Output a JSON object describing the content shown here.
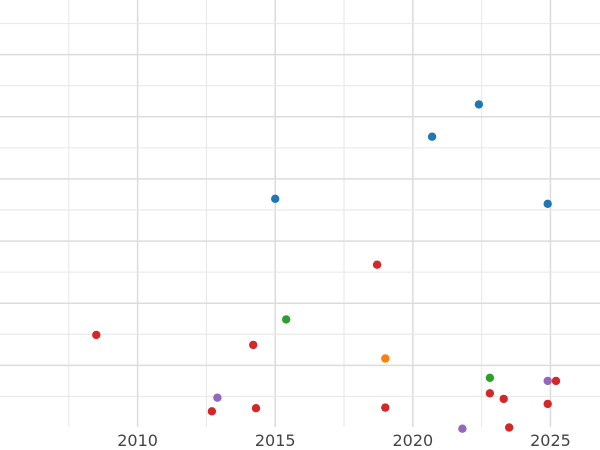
{
  "chart_data": {
    "type": "scatter",
    "title": "",
    "xlabel": "",
    "ylabel": "",
    "xlim": [
      2005.0,
      2026.8
    ],
    "ylim": [
      0,
      7
    ],
    "x_ticks": [
      {
        "value": 2010,
        "label": "2010"
      },
      {
        "value": 2015,
        "label": "2015"
      },
      {
        "value": 2020,
        "label": "2020"
      },
      {
        "value": 2025,
        "label": "2025"
      }
    ],
    "x_gridlines": [
      2010,
      2015,
      2020,
      2025
    ],
    "y_gridlines": [
      1,
      2,
      3,
      4,
      5,
      6
    ],
    "y_tick_labels_shown": false,
    "grid": true,
    "legend": "none",
    "series": [
      {
        "color": "#1f77b4",
        "points": [
          {
            "x": 2015.0,
            "y": 3.68
          },
          {
            "x": 2020.7,
            "y": 4.68
          },
          {
            "x": 2022.4,
            "y": 5.2
          },
          {
            "x": 2024.9,
            "y": 3.6
          }
        ]
      },
      {
        "color": "#d62728",
        "points": [
          {
            "x": 2008.5,
            "y": 1.49
          },
          {
            "x": 2012.7,
            "y": 0.26
          },
          {
            "x": 2014.2,
            "y": 1.33
          },
          {
            "x": 2014.3,
            "y": 0.31
          },
          {
            "x": 2018.7,
            "y": 2.62
          },
          {
            "x": 2019.0,
            "y": 0.32
          },
          {
            "x": 2022.8,
            "y": 0.55
          },
          {
            "x": 2023.3,
            "y": 0.46
          },
          {
            "x": 2023.5,
            "y": 0.0
          },
          {
            "x": 2024.9,
            "y": 0.38
          },
          {
            "x": 2025.2,
            "y": 0.75
          }
        ]
      },
      {
        "color": "#2ca02c",
        "points": [
          {
            "x": 2015.4,
            "y": 1.74
          },
          {
            "x": 2022.8,
            "y": 0.8
          }
        ]
      },
      {
        "color": "#ff7f0e",
        "points": [
          {
            "x": 2019.0,
            "y": 1.11
          }
        ]
      },
      {
        "color": "#9467bd",
        "points": [
          {
            "x": 2012.9,
            "y": 0.48
          },
          {
            "x": 2021.8,
            "y": -0.02
          },
          {
            "x": 2024.9,
            "y": 0.75
          }
        ]
      }
    ]
  }
}
